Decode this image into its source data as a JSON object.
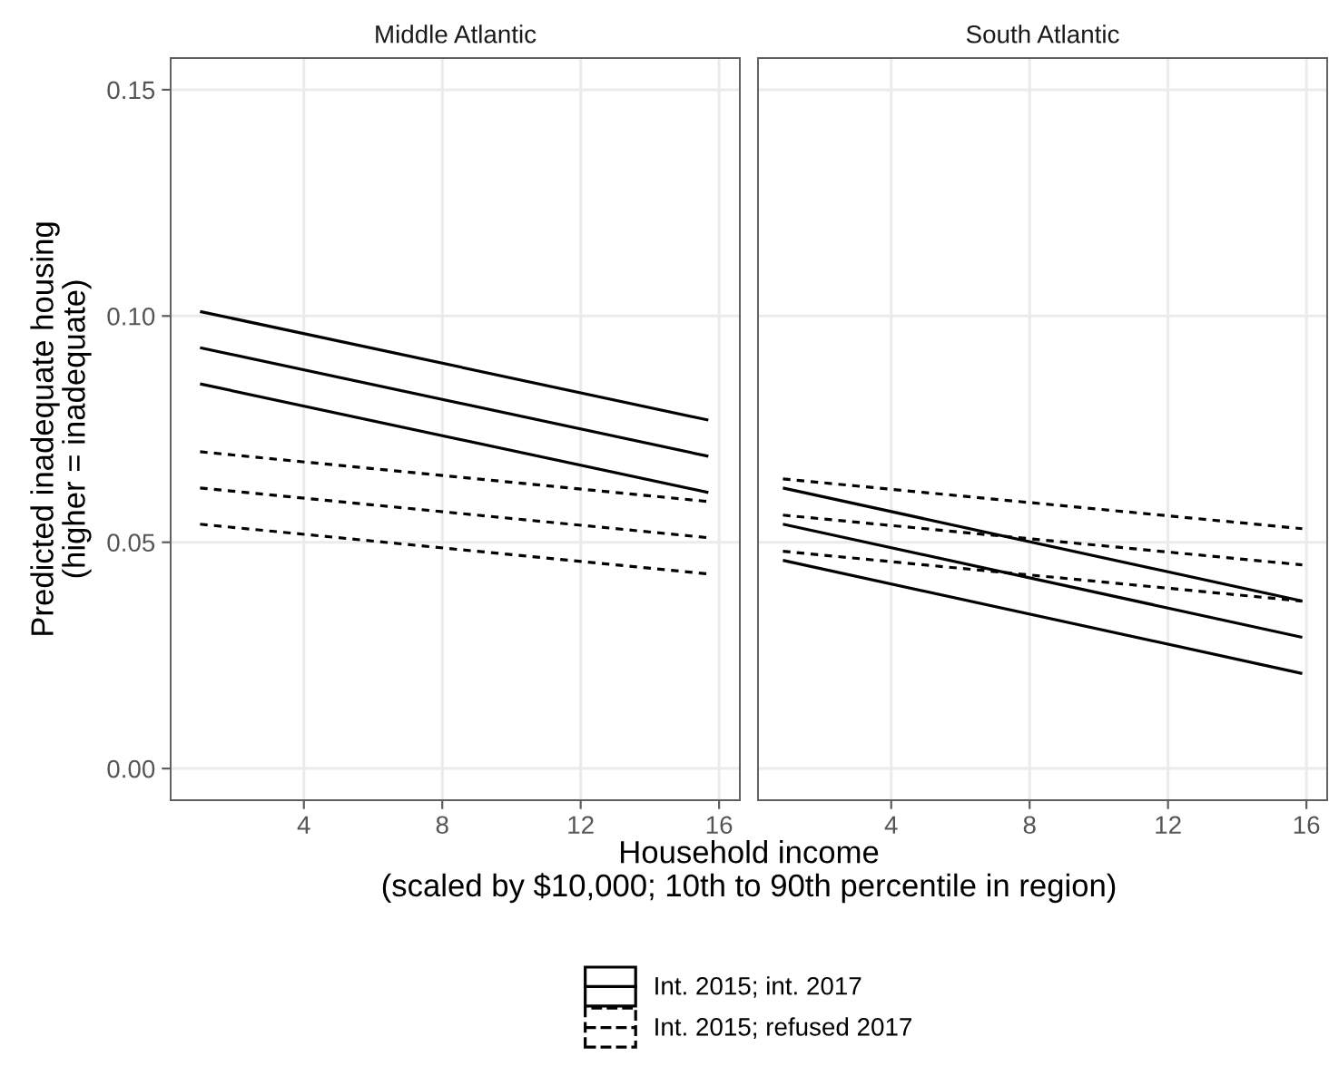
{
  "chart_data": [
    {
      "type": "line",
      "title": "Middle Atlantic",
      "ylabel": "Predicted inadequate housing\n(higher = inadequate)",
      "xlabel": "Household income\n(scaled by $10,000; 10th to 90th percentile in region)",
      "xlim": [
        0.15,
        16.6
      ],
      "xticks": [
        4,
        8,
        12,
        16
      ],
      "ylim": [
        -0.007,
        0.157
      ],
      "yticks": [
        {
          "value": 0,
          "label": "0.00"
        },
        0.05,
        {
          "value": 0.1,
          "label": "0.10"
        },
        0.15
      ],
      "grid": true,
      "legend": "bottom",
      "series": [
        {
          "name": "Int. 2015; int. 2017",
          "color": "#000000",
          "line_style": "solid",
          "x": [
            1.0,
            15.69
          ],
          "values": [
            0.101,
            0.077
          ]
        },
        {
          "color": "#000000",
          "line_style": "solid",
          "x": [
            1.0,
            15.69
          ],
          "values": [
            0.093,
            0.069
          ]
        },
        {
          "color": "#000000",
          "line_style": "solid",
          "x": [
            1.0,
            15.69
          ],
          "values": [
            0.085,
            0.061
          ]
        },
        {
          "name": "Int. 2015; refused 2017",
          "color": "#000000",
          "line_style": "dashed",
          "x": [
            1.0,
            15.69
          ],
          "values": [
            0.07,
            0.059
          ]
        },
        {
          "color": "#000000",
          "line_style": "dashed",
          "x": [
            1.0,
            15.69
          ],
          "values": [
            0.062,
            0.051
          ]
        },
        {
          "color": "#000000",
          "line_style": "dashed",
          "x": [
            1.0,
            15.69
          ],
          "values": [
            0.054,
            0.043
          ]
        }
      ]
    },
    {
      "type": "line",
      "title": "South Atlantic",
      "xlim": [
        0.15,
        16.6
      ],
      "xticks": [
        4,
        8,
        12,
        16
      ],
      "ylim": [
        -0.007,
        0.157
      ],
      "yticks": [
        0,
        0.05,
        0.1,
        0.15
      ],
      "grid": true,
      "tick_labels": "x",
      "series": [
        {
          "color": "#000000",
          "line_style": "solid",
          "x": [
            0.87,
            15.88
          ],
          "values": [
            0.062,
            0.037
          ]
        },
        {
          "color": "#000000",
          "line_style": "solid",
          "x": [
            0.87,
            15.88
          ],
          "values": [
            0.054,
            0.029
          ]
        },
        {
          "color": "#000000",
          "line_style": "solid",
          "x": [
            0.87,
            15.88
          ],
          "values": [
            0.046,
            0.021
          ]
        },
        {
          "color": "#000000",
          "line_style": "dashed",
          "x": [
            0.87,
            15.88
          ],
          "values": [
            0.064,
            0.053
          ]
        },
        {
          "color": "#000000",
          "line_style": "dashed",
          "x": [
            0.87,
            15.88
          ],
          "values": [
            0.056,
            0.045
          ]
        },
        {
          "color": "#000000",
          "line_style": "dashed",
          "x": [
            0.87,
            15.88
          ],
          "values": [
            0.048,
            0.037
          ]
        }
      ]
    }
  ]
}
